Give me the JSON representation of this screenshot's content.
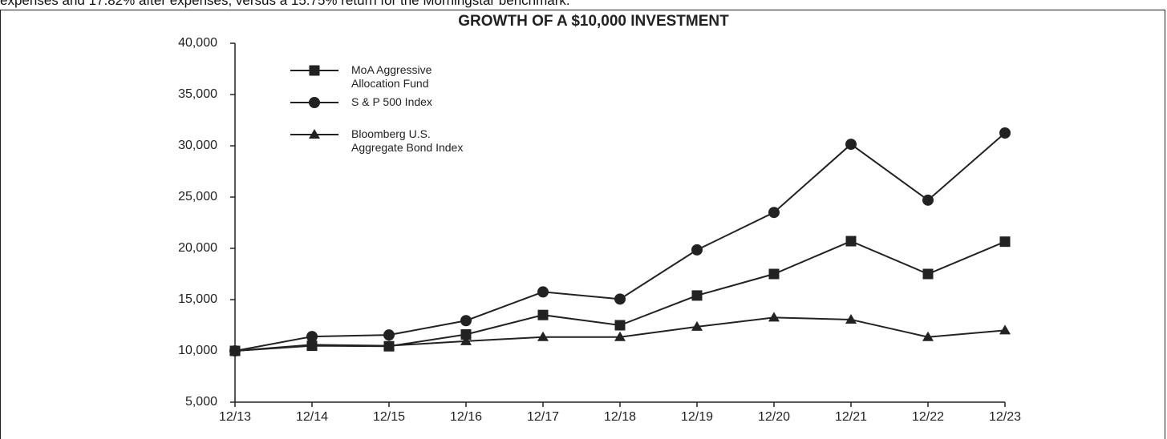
{
  "intro_text": "expenses and 17.82% after expenses, versus a 15.75% return for the Morningstar benchmark.",
  "chart_data": {
    "type": "line",
    "title": "GROWTH OF A $10,000 INVESTMENT",
    "categories": [
      "12/13",
      "12/14",
      "12/15",
      "12/16",
      "12/17",
      "12/18",
      "12/19",
      "12/20",
      "12/21",
      "12/22",
      "12/23"
    ],
    "series": [
      {
        "name": "MoA Aggressive Allocation Fund",
        "color": "#222222",
        "marker": "square",
        "values": [
          10000,
          10500,
          10450,
          11600,
          13500,
          12500,
          15400,
          17500,
          20700,
          17500,
          20650
        ]
      },
      {
        "name": "S & P 500 Index",
        "color": "#222222",
        "marker": "circle",
        "values": [
          10000,
          11400,
          11550,
          12950,
          15750,
          15050,
          19850,
          23500,
          30150,
          24700,
          31250
        ]
      },
      {
        "name": "Bloomberg U.S. Aggregate Bond Index",
        "color": "#222222",
        "marker": "triangle",
        "values": [
          10000,
          10600,
          10500,
          10950,
          11350,
          11350,
          12350,
          13250,
          13050,
          11350,
          12000
        ]
      }
    ],
    "ylim": [
      5000,
      40000
    ],
    "yticks": [
      {
        "value": 5000,
        "label": "5,000"
      },
      {
        "value": 10000,
        "label": "10,000"
      },
      {
        "value": 15000,
        "label": "15,000"
      },
      {
        "value": 20000,
        "label": "20,000"
      },
      {
        "value": 25000,
        "label": "25,000"
      },
      {
        "value": 30000,
        "label": "30,000"
      },
      {
        "value": 35000,
        "label": "35,000"
      },
      {
        "value": 40000,
        "label": "40,000"
      }
    ],
    "grid": false
  }
}
